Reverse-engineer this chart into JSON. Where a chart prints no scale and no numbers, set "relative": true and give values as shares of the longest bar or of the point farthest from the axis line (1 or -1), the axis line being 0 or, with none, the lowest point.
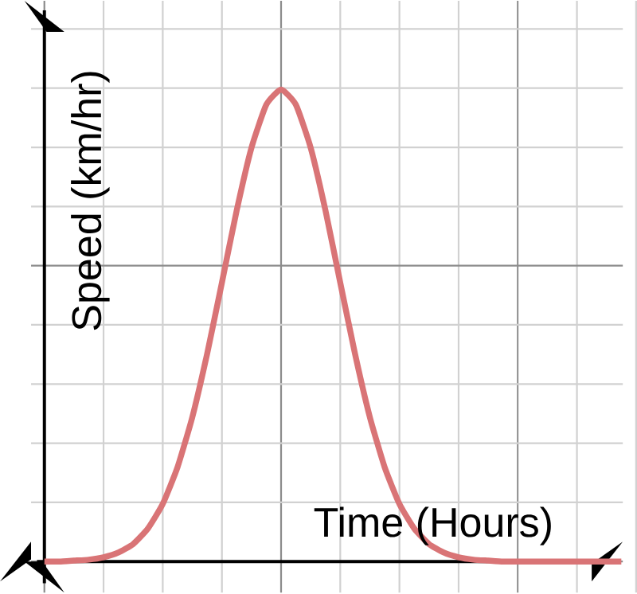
{
  "chart_data": {
    "type": "line",
    "relative": true,
    "grid": true,
    "xlabel": "Time (Hours)",
    "ylabel": "Speed (km/hr)",
    "categories": [
      null,
      null,
      null,
      null,
      null,
      null,
      null,
      null,
      null,
      null,
      null,
      null,
      null,
      null,
      null,
      null,
      null,
      null,
      null,
      null,
      null,
      null,
      null,
      null,
      null,
      null,
      null,
      null,
      null,
      null,
      null,
      null,
      null,
      null,
      null,
      null,
      null,
      null,
      null,
      null
    ],
    "series": [
      {
        "color": "#d97476",
        "values": [
          0,
          0,
          0.002,
          0.004,
          0.009,
          0.019,
          0.037,
          0.07,
          0.122,
          0.2,
          0.306,
          0.44,
          0.591,
          0.744,
          0.877,
          0.968,
          1,
          0.968,
          0.877,
          0.744,
          0.591,
          0.44,
          0.306,
          0.2,
          0.122,
          0.07,
          0.037,
          0.019,
          0.009,
          0.004,
          0.002,
          0,
          0,
          0,
          0,
          0,
          0,
          0,
          0,
          0
        ]
      }
    ]
  }
}
